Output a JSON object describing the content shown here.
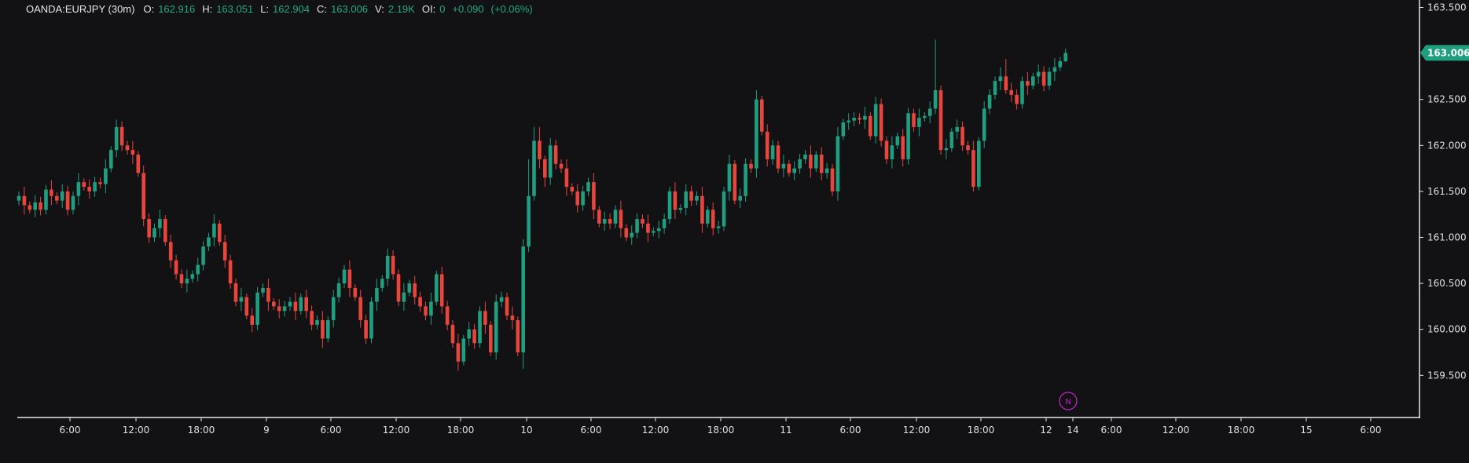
{
  "legend": {
    "symbol": "OANDA:EURJPY (30m)",
    "open_label": "O:",
    "open": "162.916",
    "high_label": "H:",
    "high": "163.051",
    "low_label": "L:",
    "low": "162.904",
    "close_label": "C:",
    "close": "163.006",
    "volume_label": "V:",
    "volume": "2.19K",
    "oi_label": "OI:",
    "oi": "0",
    "change": "+0.090",
    "change_pct": "(+0.06%)"
  },
  "colors": {
    "up": "#1f9e80",
    "down": "#e8453c",
    "background": "#121214",
    "axis": "#e6e6e6",
    "marker": "#c21fc9"
  },
  "marker": {
    "label": "N",
    "icon": "news-marker-icon"
  },
  "chart_data": {
    "type": "candlestick",
    "title": "",
    "current_price": "163.006",
    "ylim": [
      159.2,
      163.55
    ],
    "y_ticks": [
      "163.500",
      "162.500",
      "162.000",
      "161.500",
      "161.000",
      "160.500",
      "160.000",
      "159.500"
    ],
    "x_ticks": [
      "6:00",
      "12:00",
      "18:00",
      "9",
      "6:00",
      "12:00",
      "18:00",
      "10",
      "6:00",
      "12:00",
      "18:00",
      "11",
      "6:00",
      "12:00",
      "18:00",
      "12",
      "14",
      "6:00",
      "12:00",
      "18:00",
      "15",
      "6:00"
    ],
    "grid": false,
    "ohlc": [
      [
        161.4,
        161.5,
        161.35,
        161.45
      ],
      [
        161.45,
        161.55,
        161.25,
        161.35
      ],
      [
        161.35,
        161.39,
        161.26,
        161.3
      ],
      [
        161.3,
        161.46,
        161.22,
        161.38
      ],
      [
        161.38,
        161.44,
        161.24,
        161.3
      ],
      [
        161.3,
        161.57,
        161.25,
        161.52
      ],
      [
        161.52,
        161.62,
        161.35,
        161.45
      ],
      [
        161.45,
        161.49,
        161.36,
        161.4
      ],
      [
        161.4,
        161.58,
        161.32,
        161.5
      ],
      [
        161.5,
        161.56,
        161.24,
        161.3
      ],
      [
        161.3,
        161.5,
        161.25,
        161.45
      ],
      [
        161.45,
        161.7,
        161.35,
        161.6
      ],
      [
        161.6,
        161.64,
        161.51,
        161.55
      ],
      [
        161.55,
        161.63,
        161.42,
        161.5
      ],
      [
        161.5,
        161.66,
        161.44,
        161.6
      ],
      [
        161.6,
        161.65,
        161.53,
        161.58
      ],
      [
        161.58,
        161.85,
        161.48,
        161.75
      ],
      [
        161.75,
        161.99,
        161.71,
        161.95
      ],
      [
        161.95,
        162.28,
        161.87,
        162.2
      ],
      [
        162.2,
        162.26,
        161.94,
        162.0
      ],
      [
        162.0,
        162.05,
        161.9,
        161.95
      ],
      [
        161.95,
        162.05,
        161.8,
        161.9
      ],
      [
        161.9,
        161.94,
        161.66,
        161.7
      ],
      [
        161.7,
        161.78,
        161.12,
        161.2
      ],
      [
        161.2,
        161.26,
        160.94,
        161.0
      ],
      [
        161.0,
        161.15,
        160.95,
        161.1
      ],
      [
        161.1,
        161.3,
        161.0,
        161.2
      ],
      [
        161.2,
        161.24,
        160.91,
        160.95
      ],
      [
        160.95,
        161.03,
        160.67,
        160.75
      ],
      [
        160.75,
        160.81,
        160.54,
        160.6
      ],
      [
        160.6,
        160.65,
        160.45,
        160.5
      ],
      [
        160.5,
        160.65,
        160.4,
        160.55
      ],
      [
        160.55,
        160.64,
        160.51,
        160.6
      ],
      [
        160.6,
        160.78,
        160.52,
        160.7
      ],
      [
        160.7,
        160.96,
        160.64,
        160.9
      ],
      [
        160.9,
        161.05,
        160.85,
        161.0
      ],
      [
        161.0,
        161.25,
        160.9,
        161.15
      ],
      [
        161.15,
        161.19,
        160.91,
        160.95
      ],
      [
        160.95,
        161.03,
        160.67,
        160.75
      ],
      [
        160.75,
        160.81,
        160.44,
        160.5
      ],
      [
        160.5,
        160.55,
        160.25,
        160.3
      ],
      [
        160.3,
        160.45,
        160.2,
        160.35
      ],
      [
        160.35,
        160.39,
        160.11,
        160.15
      ],
      [
        160.15,
        160.23,
        159.97,
        160.05
      ],
      [
        160.05,
        160.46,
        159.99,
        160.4
      ],
      [
        160.4,
        160.5,
        160.35,
        160.45
      ],
      [
        160.45,
        160.55,
        160.2,
        160.3
      ],
      [
        160.3,
        160.34,
        160.21,
        160.25
      ],
      [
        160.25,
        160.33,
        160.12,
        160.2
      ],
      [
        160.2,
        160.31,
        160.14,
        160.25
      ],
      [
        160.25,
        160.35,
        160.2,
        160.3
      ],
      [
        160.3,
        160.4,
        160.1,
        160.2
      ],
      [
        160.2,
        160.39,
        160.16,
        160.35
      ],
      [
        160.35,
        160.43,
        160.12,
        160.2
      ],
      [
        160.2,
        160.26,
        159.99,
        160.05
      ],
      [
        160.05,
        160.15,
        160.0,
        160.1
      ],
      [
        160.1,
        160.2,
        159.8,
        159.9
      ],
      [
        159.9,
        160.14,
        159.86,
        160.1
      ],
      [
        160.1,
        160.43,
        160.02,
        160.35
      ],
      [
        160.35,
        160.56,
        160.29,
        160.5
      ],
      [
        160.5,
        160.7,
        160.45,
        160.65
      ],
      [
        160.65,
        160.75,
        160.35,
        160.45
      ],
      [
        160.45,
        160.49,
        160.31,
        160.35
      ],
      [
        160.35,
        160.43,
        160.02,
        160.1
      ],
      [
        160.1,
        160.16,
        159.84,
        159.9
      ],
      [
        159.9,
        160.35,
        159.85,
        160.3
      ],
      [
        160.3,
        160.55,
        160.2,
        160.45
      ],
      [
        160.45,
        160.59,
        160.41,
        160.55
      ],
      [
        160.55,
        160.88,
        160.47,
        160.8
      ],
      [
        160.8,
        160.86,
        160.54,
        160.6
      ],
      [
        160.6,
        160.65,
        160.25,
        160.3
      ],
      [
        160.3,
        160.5,
        160.2,
        160.4
      ],
      [
        160.4,
        160.54,
        160.36,
        160.5
      ],
      [
        160.5,
        160.58,
        160.27,
        160.35
      ],
      [
        160.35,
        160.41,
        160.19,
        160.25
      ],
      [
        160.25,
        160.3,
        160.1,
        160.15
      ],
      [
        160.15,
        160.4,
        160.05,
        160.3
      ],
      [
        160.3,
        160.64,
        160.26,
        160.6
      ],
      [
        160.6,
        160.68,
        160.17,
        160.25
      ],
      [
        160.25,
        160.31,
        159.99,
        160.05
      ],
      [
        160.05,
        160.1,
        159.8,
        159.85
      ],
      [
        159.85,
        159.95,
        159.55,
        159.65
      ],
      [
        159.65,
        159.94,
        159.61,
        159.9
      ],
      [
        159.9,
        160.08,
        159.82,
        160.0
      ],
      [
        160.0,
        160.06,
        159.79,
        159.85
      ],
      [
        159.85,
        160.25,
        159.8,
        160.2
      ],
      [
        160.2,
        160.3,
        159.95,
        160.05
      ],
      [
        160.05,
        160.09,
        159.71,
        159.75
      ],
      [
        159.75,
        160.38,
        159.67,
        160.3
      ],
      [
        160.3,
        160.41,
        160.24,
        160.35
      ],
      [
        160.35,
        160.4,
        160.1,
        160.15
      ],
      [
        160.15,
        160.25,
        160.0,
        160.1
      ],
      [
        160.1,
        160.14,
        159.71,
        159.75
      ],
      [
        159.75,
        160.98,
        159.57,
        160.9
      ],
      [
        160.9,
        161.85,
        160.84,
        161.45
      ],
      [
        161.45,
        162.2,
        161.4,
        162.05
      ],
      [
        162.05,
        162.2,
        161.75,
        161.85
      ],
      [
        161.85,
        161.89,
        161.55,
        161.65
      ],
      [
        161.65,
        162.08,
        161.57,
        162.0
      ],
      [
        162.0,
        162.06,
        161.74,
        161.8
      ],
      [
        161.8,
        161.85,
        161.7,
        161.75
      ],
      [
        161.75,
        161.85,
        161.45,
        161.55
      ],
      [
        161.55,
        161.59,
        161.46,
        161.5
      ],
      [
        161.5,
        161.58,
        161.27,
        161.35
      ],
      [
        161.35,
        161.56,
        161.29,
        161.5
      ],
      [
        161.5,
        161.65,
        161.45,
        161.6
      ],
      [
        161.6,
        161.7,
        161.2,
        161.3
      ],
      [
        161.3,
        161.34,
        161.11,
        161.15
      ],
      [
        161.15,
        161.28,
        161.07,
        161.2
      ],
      [
        161.2,
        161.26,
        161.09,
        161.15
      ],
      [
        161.15,
        161.35,
        161.1,
        161.3
      ],
      [
        161.3,
        161.4,
        161.0,
        161.1
      ],
      [
        161.1,
        161.14,
        160.96,
        161.0
      ],
      [
        161.0,
        161.13,
        160.92,
        161.05
      ],
      [
        161.05,
        161.26,
        160.99,
        161.2
      ],
      [
        161.2,
        161.25,
        161.1,
        161.15
      ],
      [
        161.15,
        161.25,
        160.95,
        161.05
      ],
      [
        161.05,
        161.11,
        161.01,
        161.07
      ],
      [
        161.07,
        161.18,
        160.99,
        161.1
      ],
      [
        161.1,
        161.26,
        161.04,
        161.2
      ],
      [
        161.2,
        161.55,
        161.15,
        161.5
      ],
      [
        161.5,
        161.6,
        161.2,
        161.3
      ],
      [
        161.3,
        161.36,
        161.26,
        161.32
      ],
      [
        161.32,
        161.58,
        161.24,
        161.5
      ],
      [
        161.5,
        161.56,
        161.34,
        161.4
      ],
      [
        161.4,
        161.5,
        161.35,
        161.45
      ],
      [
        161.45,
        161.55,
        161.05,
        161.15
      ],
      [
        161.15,
        161.34,
        161.11,
        161.3
      ],
      [
        161.3,
        161.38,
        161.02,
        161.1
      ],
      [
        161.1,
        161.18,
        161.04,
        161.12
      ],
      [
        161.12,
        161.55,
        161.07,
        161.5
      ],
      [
        161.5,
        161.9,
        161.4,
        161.8
      ],
      [
        161.8,
        161.84,
        161.36,
        161.4
      ],
      [
        161.4,
        161.53,
        161.32,
        161.45
      ],
      [
        161.45,
        161.86,
        161.39,
        161.8
      ],
      [
        161.8,
        161.85,
        161.7,
        161.75
      ],
      [
        161.75,
        162.6,
        161.65,
        162.5
      ],
      [
        162.5,
        162.54,
        162.11,
        162.15
      ],
      [
        162.15,
        162.23,
        161.77,
        161.85
      ],
      [
        161.85,
        162.06,
        161.79,
        162.0
      ],
      [
        162.0,
        162.05,
        161.7,
        161.75
      ],
      [
        161.75,
        161.9,
        161.65,
        161.8
      ],
      [
        161.8,
        161.84,
        161.66,
        161.7
      ],
      [
        161.7,
        161.83,
        161.62,
        161.75
      ],
      [
        161.75,
        161.91,
        161.69,
        161.85
      ],
      [
        161.85,
        161.95,
        161.8,
        161.9
      ],
      [
        161.9,
        162.0,
        161.65,
        161.75
      ],
      [
        161.75,
        161.94,
        161.71,
        161.9
      ],
      [
        161.9,
        161.98,
        161.62,
        161.7
      ],
      [
        161.7,
        161.81,
        161.64,
        161.75
      ],
      [
        161.75,
        161.8,
        161.45,
        161.5
      ],
      [
        161.5,
        162.2,
        161.4,
        162.1
      ],
      [
        162.1,
        162.29,
        162.06,
        162.25
      ],
      [
        162.25,
        162.35,
        162.17,
        162.27
      ],
      [
        162.27,
        162.36,
        162.21,
        162.3
      ],
      [
        162.3,
        162.35,
        162.23,
        162.28
      ],
      [
        162.28,
        162.42,
        162.18,
        162.32
      ],
      [
        162.32,
        162.36,
        162.06,
        162.1
      ],
      [
        162.1,
        162.53,
        162.02,
        162.45
      ],
      [
        162.45,
        162.51,
        161.99,
        162.05
      ],
      [
        162.05,
        162.1,
        161.8,
        161.85
      ],
      [
        161.85,
        162.1,
        161.75,
        162.0
      ],
      [
        162.0,
        162.14,
        161.96,
        162.1
      ],
      [
        162.1,
        162.18,
        161.77,
        161.85
      ],
      [
        161.85,
        162.41,
        161.79,
        162.35
      ],
      [
        162.35,
        162.4,
        162.15,
        162.2
      ],
      [
        162.2,
        162.4,
        162.1,
        162.3
      ],
      [
        162.3,
        162.36,
        162.26,
        162.32
      ],
      [
        162.32,
        162.48,
        162.24,
        162.4
      ],
      [
        162.4,
        163.15,
        162.34,
        162.6
      ],
      [
        162.6,
        162.65,
        161.9,
        161.95
      ],
      [
        161.95,
        162.07,
        161.85,
        161.97
      ],
      [
        161.97,
        162.19,
        161.93,
        162.15
      ],
      [
        162.15,
        162.28,
        162.07,
        162.2
      ],
      [
        162.2,
        162.26,
        161.94,
        162.0
      ],
      [
        162.0,
        162.05,
        161.9,
        161.95
      ],
      [
        161.95,
        162.05,
        161.5,
        161.55
      ],
      [
        161.55,
        162.09,
        161.51,
        162.05
      ],
      [
        162.05,
        162.48,
        161.97,
        162.4
      ],
      [
        162.4,
        162.61,
        162.34,
        162.55
      ],
      [
        162.55,
        162.75,
        162.5,
        162.7
      ],
      [
        162.7,
        162.85,
        162.6,
        162.75
      ],
      [
        162.75,
        162.94,
        162.56,
        162.6
      ],
      [
        162.6,
        162.68,
        162.47,
        162.55
      ],
      [
        162.55,
        162.61,
        162.39,
        162.45
      ],
      [
        162.45,
        162.75,
        162.4,
        162.7
      ],
      [
        162.7,
        162.8,
        162.55,
        162.65
      ],
      [
        162.65,
        162.79,
        162.61,
        162.75
      ],
      [
        162.75,
        162.88,
        162.67,
        162.8
      ],
      [
        162.8,
        162.86,
        162.59,
        162.65
      ],
      [
        162.65,
        162.85,
        162.6,
        162.8
      ],
      [
        162.8,
        162.95,
        162.7,
        162.85
      ],
      [
        162.85,
        162.96,
        162.81,
        162.916
      ],
      [
        162.916,
        163.051,
        162.904,
        163.006
      ]
    ]
  }
}
